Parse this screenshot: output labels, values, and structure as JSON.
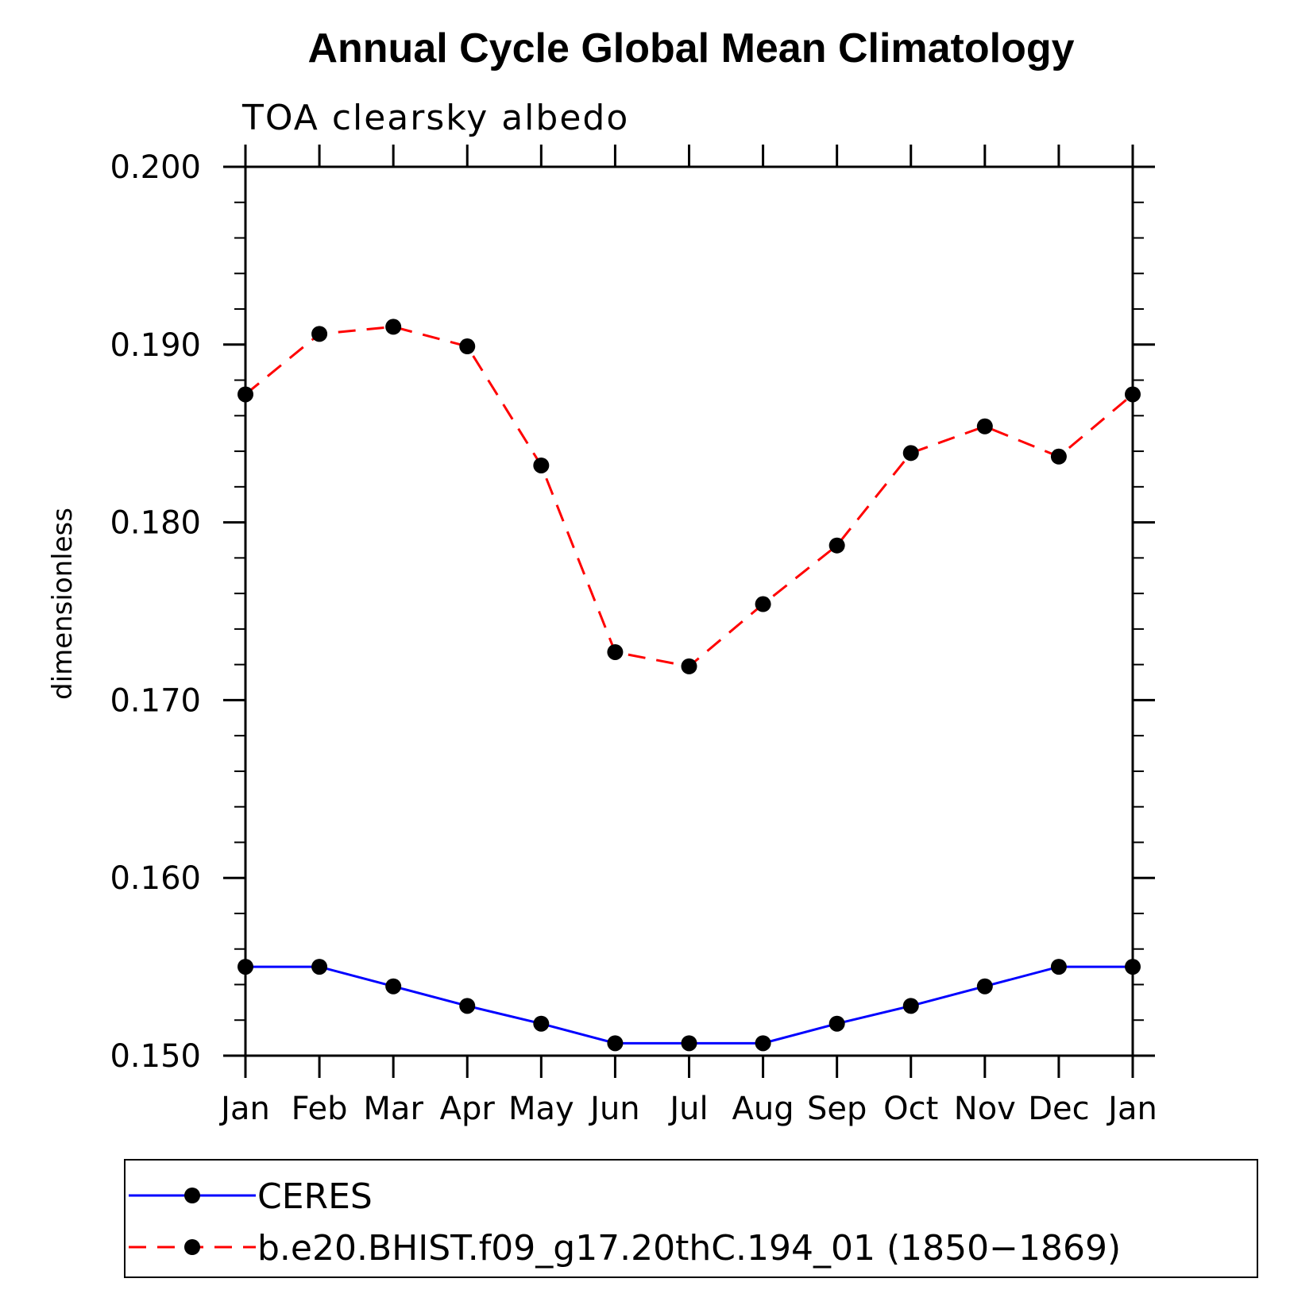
{
  "chart_data": {
    "type": "line",
    "title": "Annual Cycle Global Mean Climatology",
    "subtitle": "TOA clearsky albedo",
    "xlabel": "",
    "ylabel": "dimensionless",
    "categories": [
      "Jan",
      "Feb",
      "Mar",
      "Apr",
      "May",
      "Jun",
      "Jul",
      "Aug",
      "Sep",
      "Oct",
      "Nov",
      "Dec",
      "Jan"
    ],
    "ylim": [
      0.15,
      0.2
    ],
    "yticks": [
      "0.150",
      "0.160",
      "0.170",
      "0.180",
      "0.190",
      "0.200"
    ],
    "ytick_values": [
      0.15,
      0.16,
      0.17,
      0.18,
      0.19,
      0.2
    ],
    "grid": false,
    "legend_position": "bottom",
    "series": [
      {
        "name": "CERES",
        "color": "#0000ff",
        "dash": "solid",
        "marker": "filled-circle",
        "values": [
          0.155,
          0.155,
          0.1539,
          0.1528,
          0.1518,
          0.1507,
          0.1507,
          0.1507,
          0.1518,
          0.1528,
          0.1539,
          0.155,
          0.155
        ]
      },
      {
        "name": "b.e20.BHIST.f09_g17.20thC.194_01 (1850−1869)",
        "color": "#ff0000",
        "dash": "dashed",
        "marker": "filled-circle",
        "values": [
          0.1872,
          0.1906,
          0.191,
          0.1899,
          0.1832,
          0.1727,
          0.1719,
          0.1754,
          0.1787,
          0.1839,
          0.1854,
          0.1837,
          0.1872
        ]
      }
    ]
  }
}
